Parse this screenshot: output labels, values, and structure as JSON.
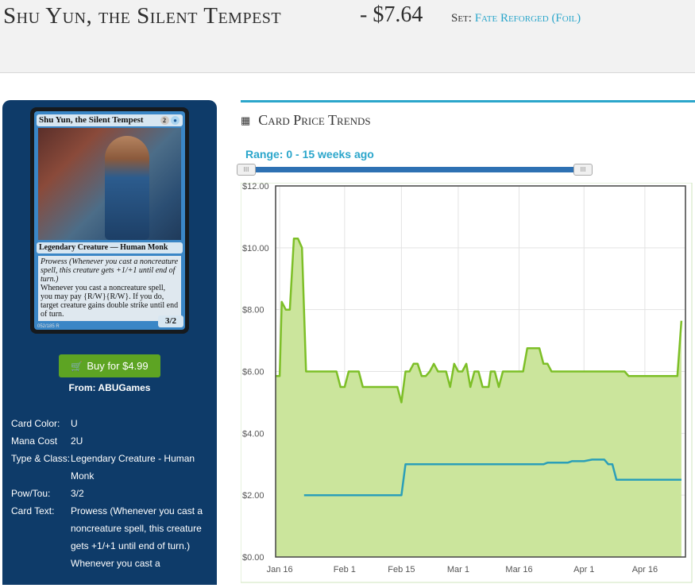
{
  "header": {
    "title": "Shu Yun, the Silent Tempest",
    "price": "- $7.64",
    "set_label": "Set:",
    "set_name": "Fate Reforged (Foil)"
  },
  "card": {
    "name": "Shu Yun, the Silent Tempest",
    "mana_cost_symbols": [
      "2",
      "U"
    ],
    "type_line": "Legendary Creature — Human Monk",
    "rules_reminder": "Prowess (Whenever you cast a noncreature spell, this creature gets +1/+1 until end of turn.)",
    "rules_text": "Whenever you cast a noncreature spell, you may pay {R/W}{R/W}. If you do, target creature gains double strike until end of turn.",
    "power_toughness": "3/2",
    "collector": "052/185 R"
  },
  "buy": {
    "button_label": "Buy for $4.99",
    "from": "From: ABUGames",
    "button_color": "#5da423"
  },
  "info": [
    {
      "label": "Card Color:",
      "value": "U"
    },
    {
      "label": "Mana Cost",
      "value": "2U"
    },
    {
      "label": "Type & Class:",
      "value": "Legendary Creature - Human Monk"
    },
    {
      "label": "Pow/Tou:",
      "value": "3/2"
    },
    {
      "label": "Card Text:",
      "value": "Prowess (Whenever you cast a noncreature spell, this creature gets +1/+1 until end of turn.) Whenever you cast a"
    }
  ],
  "panel": {
    "title": "Card Price Trends",
    "range_label": "Range: 0 - 15 weeks ago",
    "handle_glyph": "III",
    "accent": "#2ba6cb"
  },
  "chart_data": {
    "type": "area",
    "x_axis": "dates",
    "x_ticks": [
      "Jan 16",
      "Feb 1",
      "Feb 15",
      "Mar 1",
      "Mar 16",
      "Apr 1",
      "Apr 16"
    ],
    "x_tick_days": [
      15,
      31,
      45,
      59,
      74,
      90,
      105
    ],
    "xlim_days": [
      14,
      115
    ],
    "x_reference_year": 2015,
    "y_ticks": [
      "$0.00",
      "$2.00",
      "$4.00",
      "$6.00",
      "$8.00",
      "$10.00",
      "$12.00"
    ],
    "ylim": [
      0,
      12
    ],
    "grid": true,
    "series": [
      {
        "color": "#7dbf27",
        "fill": "#cbe59c",
        "points": [
          [
            14,
            5.85
          ],
          [
            15,
            5.85
          ],
          [
            15.5,
            8.25
          ],
          [
            16.5,
            8.0
          ],
          [
            17.5,
            8.0
          ],
          [
            18.5,
            10.3
          ],
          [
            19.5,
            10.3
          ],
          [
            20.5,
            10.0
          ],
          [
            21.5,
            6.0
          ],
          [
            25,
            6.0
          ],
          [
            28,
            6.0
          ],
          [
            29,
            6.0
          ],
          [
            30,
            5.5
          ],
          [
            31,
            5.5
          ],
          [
            32,
            6.0
          ],
          [
            34.5,
            6.0
          ],
          [
            35.5,
            5.5
          ],
          [
            38,
            5.5
          ],
          [
            41,
            5.5
          ],
          [
            44,
            5.5
          ],
          [
            45,
            5.0
          ],
          [
            46,
            6.0
          ],
          [
            47,
            6.0
          ],
          [
            48,
            6.25
          ],
          [
            49,
            6.25
          ],
          [
            50,
            5.85
          ],
          [
            51,
            5.85
          ],
          [
            52,
            6.0
          ],
          [
            53,
            6.25
          ],
          [
            54,
            6.0
          ],
          [
            55,
            6.0
          ],
          [
            56,
            6.0
          ],
          [
            57,
            5.5
          ],
          [
            58,
            6.25
          ],
          [
            59,
            6.0
          ],
          [
            60,
            6.0
          ],
          [
            61,
            6.25
          ],
          [
            62,
            5.5
          ],
          [
            63,
            6.0
          ],
          [
            64,
            6.0
          ],
          [
            65,
            5.5
          ],
          [
            66.5,
            5.5
          ],
          [
            67,
            6.0
          ],
          [
            68,
            6.0
          ],
          [
            69,
            5.5
          ],
          [
            70,
            6.0
          ],
          [
            72,
            6.0
          ],
          [
            74,
            6.0
          ],
          [
            75,
            6.0
          ],
          [
            76,
            6.75
          ],
          [
            78,
            6.75
          ],
          [
            79,
            6.75
          ],
          [
            80,
            6.25
          ],
          [
            81,
            6.25
          ],
          [
            82,
            6.0
          ],
          [
            90,
            6.0
          ],
          [
            98,
            6.0
          ],
          [
            100,
            6.0
          ],
          [
            101,
            5.85
          ],
          [
            110,
            5.85
          ],
          [
            113,
            5.85
          ],
          [
            114,
            7.64
          ]
        ]
      },
      {
        "color": "#2b9fb8",
        "points": [
          [
            21,
            2.0
          ],
          [
            30,
            2.0
          ],
          [
            40,
            2.0
          ],
          [
            45,
            2.0
          ],
          [
            46,
            3.0
          ],
          [
            60,
            3.0
          ],
          [
            75,
            3.0
          ],
          [
            80,
            3.0
          ],
          [
            81,
            3.05
          ],
          [
            86,
            3.05
          ],
          [
            87,
            3.1
          ],
          [
            90,
            3.1
          ],
          [
            92,
            3.15
          ],
          [
            95,
            3.15
          ],
          [
            96,
            3.0
          ],
          [
            97,
            3.0
          ],
          [
            98,
            2.5
          ],
          [
            105,
            2.5
          ],
          [
            114,
            2.5
          ]
        ]
      }
    ]
  }
}
